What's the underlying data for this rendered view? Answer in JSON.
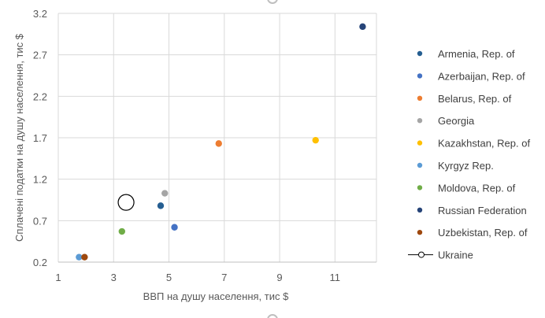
{
  "chart_data": {
    "type": "scatter",
    "xlabel": "ВВП на душу населення, тис $",
    "ylabel": "Сплачені податки на душу населення, тис $",
    "xlim": [
      1,
      12.5
    ],
    "ylim": [
      0.2,
      3.2
    ],
    "xticks": [
      "1",
      "3",
      "5",
      "7",
      "9",
      "11"
    ],
    "yticks": [
      "0.2",
      "0.7",
      "1.2",
      "1.7",
      "2.2",
      "2.7",
      "3.2"
    ],
    "grid": true,
    "legend_position": "right",
    "series": [
      {
        "name": "Armenia, Rep. of",
        "color": "#255e91",
        "points": [
          [
            4.7,
            0.88
          ]
        ]
      },
      {
        "name": "Azerbaijan, Rep. of",
        "color": "#4472c4",
        "points": [
          [
            5.2,
            0.62
          ]
        ]
      },
      {
        "name": "Belarus, Rep. of",
        "color": "#ed7d31",
        "points": [
          [
            6.8,
            1.63
          ]
        ]
      },
      {
        "name": "Georgia",
        "color": "#a5a5a5",
        "points": [
          [
            4.85,
            1.03
          ]
        ]
      },
      {
        "name": "Kazakhstan, Rep. of",
        "color": "#ffc000",
        "points": [
          [
            10.3,
            1.67
          ]
        ]
      },
      {
        "name": "Kyrgyz Rep.",
        "color": "#5b9bd5",
        "points": [
          [
            1.75,
            0.26
          ]
        ]
      },
      {
        "name": "Moldova, Rep. of",
        "color": "#70ad47",
        "points": [
          [
            3.3,
            0.57
          ]
        ]
      },
      {
        "name": "Russian Federation",
        "color": "#264478",
        "points": [
          [
            12.0,
            3.04
          ]
        ]
      },
      {
        "name": "Uzbekistan, Rep. of",
        "color": "#9e480e",
        "points": [
          [
            1.95,
            0.26
          ]
        ]
      },
      {
        "name": "Ukraine",
        "color": "#000000",
        "marker": "hollow-circle",
        "points": [
          [
            3.45,
            0.92
          ]
        ]
      }
    ]
  }
}
